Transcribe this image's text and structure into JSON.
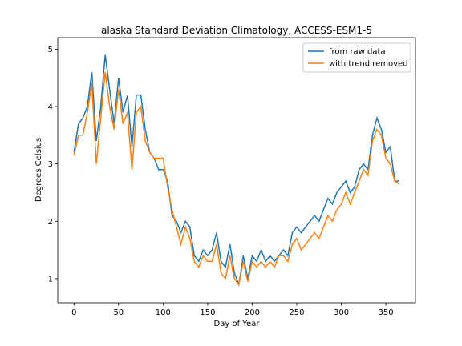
{
  "chart_data": {
    "type": "line",
    "title": "alaska Standard Deviation Climatology, ACCESS-ESM1-5",
    "xlabel": "Day of Year",
    "ylabel": "Degrees Celsius",
    "x": [
      0,
      5,
      10,
      15,
      20,
      25,
      30,
      35,
      40,
      45,
      50,
      55,
      60,
      65,
      70,
      75,
      80,
      85,
      90,
      95,
      100,
      105,
      110,
      115,
      120,
      125,
      130,
      135,
      140,
      145,
      150,
      155,
      160,
      165,
      170,
      175,
      180,
      185,
      190,
      195,
      200,
      205,
      210,
      215,
      220,
      225,
      230,
      235,
      240,
      245,
      250,
      255,
      260,
      265,
      270,
      275,
      280,
      285,
      290,
      295,
      300,
      305,
      310,
      315,
      320,
      325,
      330,
      335,
      340,
      345,
      350,
      355,
      360,
      365
    ],
    "series": [
      {
        "name": "from raw data",
        "color": "#1f77b4",
        "values": [
          3.2,
          3.7,
          3.8,
          4.0,
          4.6,
          3.4,
          4.0,
          4.9,
          4.3,
          3.7,
          4.5,
          3.9,
          4.2,
          3.3,
          4.2,
          4.2,
          3.6,
          3.2,
          3.1,
          2.9,
          2.9,
          2.7,
          2.1,
          2.0,
          1.8,
          2.0,
          1.9,
          1.4,
          1.3,
          1.5,
          1.4,
          1.5,
          1.8,
          1.3,
          1.2,
          1.6,
          1.1,
          0.9,
          1.4,
          1.0,
          1.4,
          1.3,
          1.5,
          1.3,
          1.4,
          1.3,
          1.4,
          1.5,
          1.4,
          1.8,
          1.9,
          1.8,
          1.9,
          2.0,
          2.1,
          2.0,
          2.2,
          2.4,
          2.3,
          2.5,
          2.6,
          2.7,
          2.5,
          2.6,
          2.9,
          3.0,
          2.9,
          3.5,
          3.8,
          3.6,
          3.2,
          3.3,
          2.7,
          2.7
        ]
      },
      {
        "name": "with trend removed",
        "color": "#ff7f0e",
        "values": [
          3.15,
          3.5,
          3.5,
          3.9,
          4.4,
          3.0,
          3.8,
          4.6,
          4.0,
          3.6,
          4.3,
          3.7,
          3.9,
          2.9,
          3.9,
          4.0,
          3.4,
          3.2,
          3.1,
          3.1,
          3.1,
          2.6,
          2.2,
          1.9,
          1.6,
          1.9,
          1.7,
          1.3,
          1.2,
          1.4,
          1.3,
          1.3,
          1.6,
          1.1,
          1.0,
          1.4,
          1.0,
          0.9,
          1.3,
          0.95,
          1.3,
          1.2,
          1.3,
          1.2,
          1.3,
          1.2,
          1.4,
          1.4,
          1.3,
          1.6,
          1.7,
          1.5,
          1.6,
          1.7,
          1.8,
          1.7,
          1.9,
          2.1,
          2.0,
          2.2,
          2.3,
          2.5,
          2.3,
          2.5,
          2.7,
          2.9,
          2.8,
          3.4,
          3.6,
          3.5,
          3.1,
          3.0,
          2.7,
          2.65
        ]
      }
    ],
    "xlim": [
      -18.25,
      383.25
    ],
    "xticks": [
      0,
      50,
      100,
      150,
      200,
      250,
      300,
      350
    ],
    "ylim": [
      0.58,
      5.2
    ],
    "yticks": [
      1,
      2,
      3,
      4,
      5
    ],
    "legend": "upper right"
  }
}
